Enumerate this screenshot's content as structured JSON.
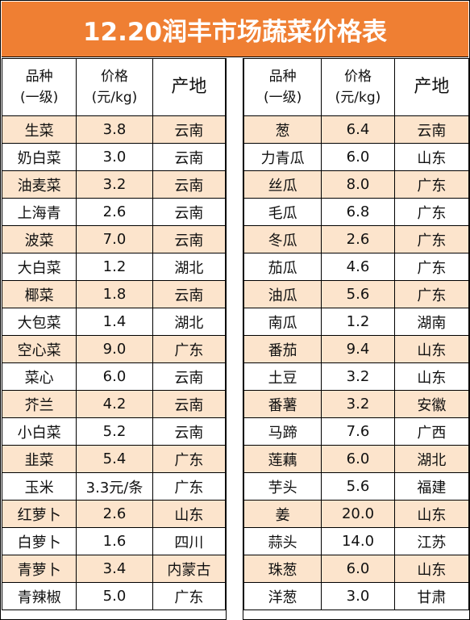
{
  "title": "12.20润丰市场蔬菜价格表",
  "header": {
    "name_line1": "品种",
    "name_line2": "(一级)",
    "price_line1": "价格",
    "price_line2": "(元/kg)",
    "origin": "产地"
  },
  "left_rows": [
    {
      "name": "生菜",
      "price": "3.8",
      "origin": "云南"
    },
    {
      "name": "奶白菜",
      "price": "3.0",
      "origin": "云南"
    },
    {
      "name": "油麦菜",
      "price": "3.2",
      "origin": "云南"
    },
    {
      "name": "上海青",
      "price": "2.6",
      "origin": "云南"
    },
    {
      "name": "波菜",
      "price": "7.0",
      "origin": "云南"
    },
    {
      "name": "大白菜",
      "price": "1.2",
      "origin": "湖北"
    },
    {
      "name": "椰菜",
      "price": "1.8",
      "origin": "云南"
    },
    {
      "name": "大包菜",
      "price": "1.4",
      "origin": "湖北"
    },
    {
      "name": "空心菜",
      "price": "9.0",
      "origin": "广东"
    },
    {
      "name": "菜心",
      "price": "6.0",
      "origin": "云南"
    },
    {
      "name": "芥兰",
      "price": "4.2",
      "origin": "云南"
    },
    {
      "name": "小白菜",
      "price": "5.2",
      "origin": "云南"
    },
    {
      "name": "韭菜",
      "price": "5.4",
      "origin": "广东"
    },
    {
      "name": "玉米",
      "price": "3.3元/条",
      "origin": "广东"
    },
    {
      "name": "红萝卜",
      "price": "2.6",
      "origin": "山东"
    },
    {
      "name": "白萝卜",
      "price": "1.6",
      "origin": "四川"
    },
    {
      "name": "青萝卜",
      "price": "3.4",
      "origin": "内蒙古"
    },
    {
      "name": "青辣椒",
      "price": "5.0",
      "origin": "广东"
    }
  ],
  "right_rows": [
    {
      "name": "葱",
      "price": "6.4",
      "origin": "云南"
    },
    {
      "name": "力青瓜",
      "price": "6.0",
      "origin": "山东"
    },
    {
      "name": "丝瓜",
      "price": "8.0",
      "origin": "广东"
    },
    {
      "name": "毛瓜",
      "price": "6.8",
      "origin": "广东"
    },
    {
      "name": "冬瓜",
      "price": "2.6",
      "origin": "广东"
    },
    {
      "name": "茄瓜",
      "price": "4.6",
      "origin": "广东"
    },
    {
      "name": "油瓜",
      "price": "5.6",
      "origin": "广东"
    },
    {
      "name": "南瓜",
      "price": "1.2",
      "origin": "湖南"
    },
    {
      "name": "番茄",
      "price": "9.4",
      "origin": "山东"
    },
    {
      "name": "土豆",
      "price": "3.2",
      "origin": "山东"
    },
    {
      "name": "番薯",
      "price": "3.2",
      "origin": "安徽"
    },
    {
      "name": "马蹄",
      "price": "7.6",
      "origin": "广西"
    },
    {
      "name": "莲藕",
      "price": "6.0",
      "origin": "湖北"
    },
    {
      "name": "芋头",
      "price": "5.6",
      "origin": "福建"
    },
    {
      "name": "姜",
      "price": "20.0",
      "origin": "山东"
    },
    {
      "name": "蒜头",
      "price": "14.0",
      "origin": "江苏"
    },
    {
      "name": "珠葱",
      "price": "6.0",
      "origin": "山东"
    },
    {
      "name": "洋葱",
      "price": "3.0",
      "origin": "甘肃"
    }
  ],
  "colors": {
    "title_bg": "#ef7f33",
    "title_text": "#ffffff",
    "alt_row_bg": "#fce4cc",
    "border": "#000000"
  }
}
